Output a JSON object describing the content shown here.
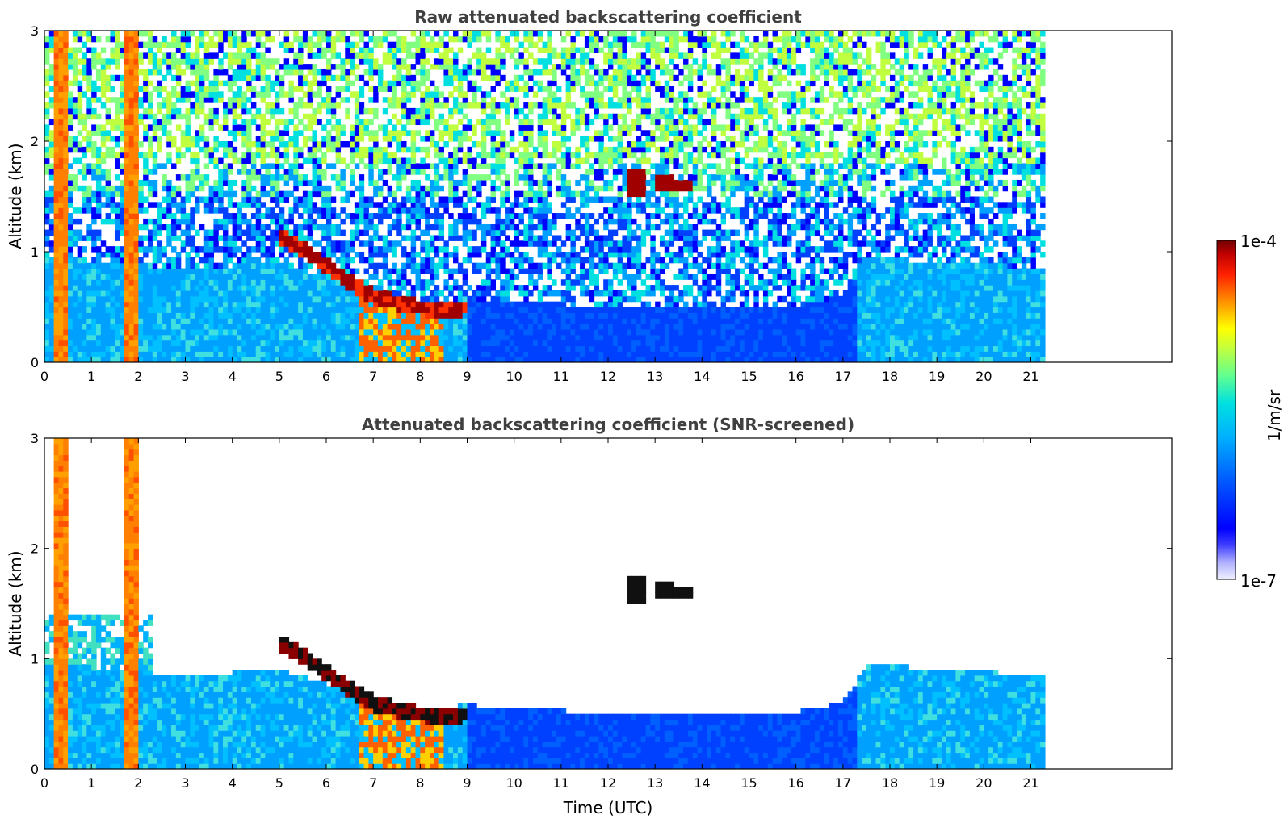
{
  "chart_data": [
    {
      "type": "heatmap",
      "title": "Raw attenuated backscattering coefficient",
      "xlabel": "",
      "ylabel": "Altitude (km)",
      "xlim": [
        0,
        24
      ],
      "ylim": [
        0,
        3
      ],
      "xticks": [
        "0",
        "1",
        "2",
        "3",
        "4",
        "5",
        "6",
        "7",
        "8",
        "9",
        "10",
        "11",
        "12",
        "13",
        "14",
        "15",
        "16",
        "17",
        "18",
        "19",
        "20",
        "21"
      ],
      "yticks": [
        "0",
        "1",
        "2",
        "3"
      ],
      "data_end_time": 21.3,
      "features": {
        "boundary_layer_top_km": [
          [
            0,
            0.95
          ],
          [
            1,
            0.92
          ],
          [
            3,
            0.85
          ],
          [
            5,
            0.9
          ],
          [
            6,
            0.8
          ],
          [
            9,
            0.6
          ],
          [
            12,
            0.55
          ],
          [
            16,
            0.55
          ],
          [
            17,
            0.6
          ],
          [
            18,
            0.9
          ],
          [
            21.3,
            0.85
          ]
        ],
        "aerosol_layer_km": [
          [
            5,
            1.15
          ],
          [
            6,
            0.85
          ],
          [
            7,
            0.6
          ],
          [
            8,
            0.5
          ],
          [
            8.7,
            0.45
          ]
        ],
        "dense_columns_utc": [
          [
            0.25,
            0.5
          ],
          [
            1.75,
            2.05
          ]
        ],
        "cloud_segments": [
          [
            12.6,
            1.5,
            1.75
          ],
          [
            13.2,
            1.55,
            1.7
          ],
          [
            13.6,
            1.55,
            1.65
          ]
        ]
      }
    },
    {
      "type": "heatmap",
      "title": "Attenuated backscattering coefficient (SNR-screened)",
      "xlabel": "Time (UTC)",
      "ylabel": "Altitude (km)",
      "xlim": [
        0,
        24
      ],
      "ylim": [
        0,
        3
      ],
      "xticks": [
        "0",
        "1",
        "2",
        "3",
        "4",
        "5",
        "6",
        "7",
        "8",
        "9",
        "10",
        "11",
        "12",
        "13",
        "14",
        "15",
        "16",
        "17",
        "18",
        "19",
        "20",
        "21"
      ],
      "yticks": [
        "0",
        "1",
        "2",
        "3"
      ],
      "data_end_time": 21.3
    }
  ],
  "colorbar": {
    "min_label": "1e-7",
    "max_label": "1e-4",
    "label": "1/m/sr",
    "colormap": "jet",
    "colors": [
      "#f0f0ff",
      "#c8c8ff",
      "#9090ff",
      "#4040ff",
      "#0000ff",
      "#0040ff",
      "#0080ff",
      "#00b0ff",
      "#00e0f0",
      "#40ffc0",
      "#80ff80",
      "#c0ff40",
      "#ffff00",
      "#ffc000",
      "#ff8000",
      "#ff4000",
      "#e00000",
      "#a00000",
      "#700000"
    ]
  }
}
